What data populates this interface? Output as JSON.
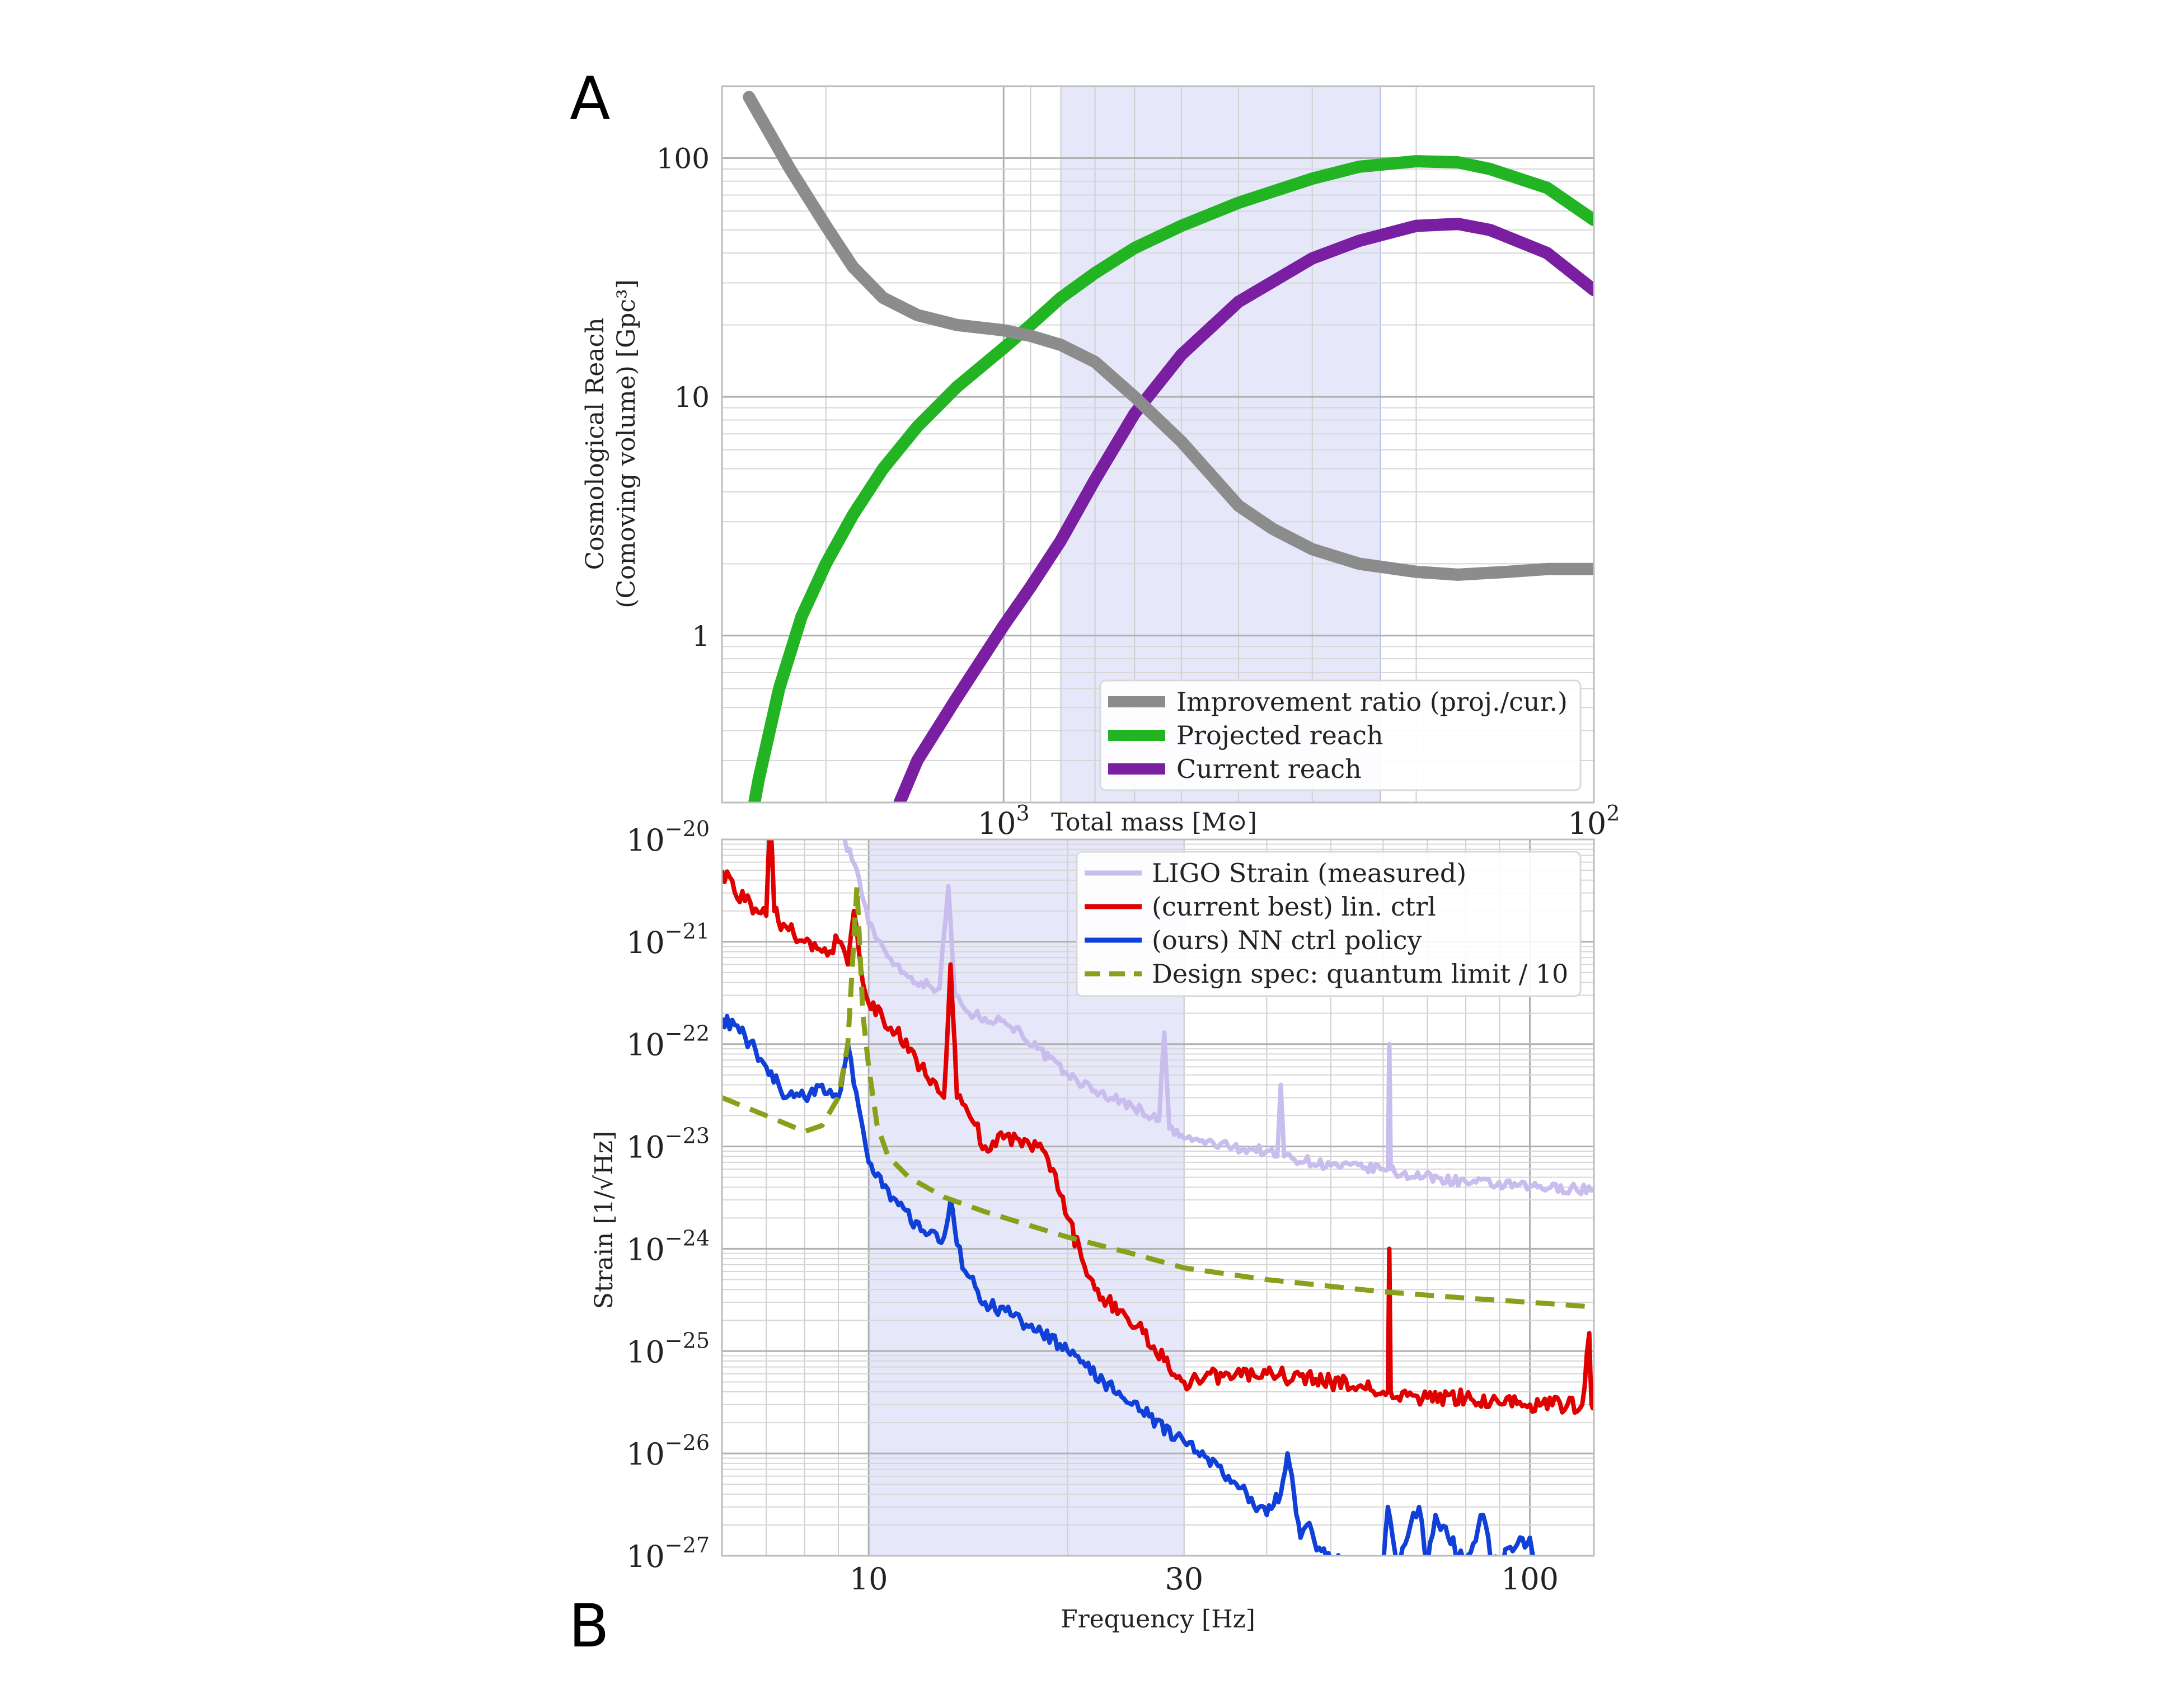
{
  "figure": {
    "panel_a_letter": "A",
    "panel_b_letter": "B"
  },
  "chart_data": [
    {
      "panel": "A",
      "type": "line",
      "ylabel_line1": "Cosmological Reach",
      "ylabel_line2": "(Comoving volume) [Gpc³]",
      "xlabel": "Total mass [M⊙]",
      "xscale": "log-reversed",
      "yscale": "log",
      "xlim": [
        3000,
        100
      ],
      "ylim": [
        0.2,
        200
      ],
      "x_ticks": [
        {
          "value": 1000,
          "base": "10",
          "exp": "3"
        },
        {
          "value": 100,
          "base": "10",
          "exp": "2"
        }
      ],
      "y_ticks": [
        {
          "value": 1,
          "label": "1"
        },
        {
          "value": 10,
          "label": "10"
        },
        {
          "value": 100,
          "label": "100"
        }
      ],
      "shaded_band": [
        800,
        230
      ],
      "grid": true,
      "legend_placement": "lower-right",
      "series": [
        {
          "name": "Improvement ratio (proj./cur.)",
          "color": "#8c8c8c",
          "x": [
            2700,
            2300,
            2000,
            1800,
            1600,
            1400,
            1200,
            1000,
            900,
            800,
            700,
            600,
            500,
            400,
            350,
            300,
            250,
            200,
            170,
            140,
            120,
            100
          ],
          "y": [
            180,
            90,
            52,
            35,
            26,
            22,
            20,
            19,
            18,
            16.5,
            14,
            10,
            6.5,
            3.5,
            2.8,
            2.3,
            2.0,
            1.85,
            1.8,
            1.85,
            1.9,
            1.9
          ]
        },
        {
          "name": "Projected reach",
          "color": "#22b422",
          "x": [
            2700,
            2600,
            2400,
            2200,
            2000,
            1800,
            1600,
            1400,
            1200,
            1000,
            900,
            800,
            700,
            600,
            500,
            400,
            300,
            250,
            200,
            170,
            150,
            120,
            100
          ],
          "y": [
            0.15,
            0.25,
            0.6,
            1.2,
            2.0,
            3.2,
            5.0,
            7.5,
            11,
            16,
            20,
            26,
            33,
            42,
            52,
            65,
            82,
            92,
            97,
            96,
            90,
            75,
            55
          ]
        },
        {
          "name": "Current reach",
          "color": "#7a1fa2",
          "x": [
            1500,
            1400,
            1200,
            1000,
            900,
            800,
            700,
            600,
            500,
            400,
            300,
            250,
            200,
            170,
            150,
            120,
            100
          ],
          "y": [
            0.2,
            0.3,
            0.55,
            1.1,
            1.6,
            2.5,
            4.5,
            8.5,
            15,
            25,
            38,
            45,
            52,
            53,
            50,
            40,
            28
          ]
        }
      ]
    },
    {
      "panel": "B",
      "type": "line",
      "ylabel": "Strain [1/√Hz]",
      "xlabel": "Frequency [Hz]",
      "xscale": "log",
      "yscale": "log",
      "xlim": [
        6,
        125
      ],
      "ylim": [
        1e-27,
        1e-20
      ],
      "x_ticks": [
        {
          "value": 10,
          "label": "10"
        },
        {
          "value": 30,
          "label": "30"
        },
        {
          "value": 100,
          "label": "100"
        }
      ],
      "y_ticks": [
        {
          "value": -20,
          "base": "10",
          "exp": "−20"
        },
        {
          "value": -21,
          "base": "10",
          "exp": "−21"
        },
        {
          "value": -22,
          "base": "10",
          "exp": "−22"
        },
        {
          "value": -23,
          "base": "10",
          "exp": "−23"
        },
        {
          "value": -24,
          "base": "10",
          "exp": "−24"
        },
        {
          "value": -25,
          "base": "10",
          "exp": "−25"
        },
        {
          "value": -26,
          "base": "10",
          "exp": "−26"
        },
        {
          "value": -27,
          "base": "10",
          "exp": "−27"
        }
      ],
      "shaded_band": [
        10,
        30
      ],
      "grid": true,
      "legend_placement": "upper-right",
      "series": [
        {
          "name": "LIGO Strain (measured)",
          "color": "#c9bdee",
          "style": "solid",
          "noise": 0.05,
          "x": [
            9.2,
            9.6,
            10,
            10.5,
            11,
            11.5,
            12,
            12.8,
            13.2,
            13.5,
            13.8,
            14.2,
            15,
            16,
            17,
            18,
            20,
            22,
            25,
            27.5,
            28,
            28.5,
            30,
            35,
            40,
            41.5,
            42,
            42.5,
            50,
            60,
            61,
            61.3,
            61.6,
            62.5,
            80,
            100,
            125
          ],
          "y": [
            1e-20,
            5e-21,
            1.5e-21,
            9e-22,
            6e-22,
            4.5e-22,
            4e-22,
            3.5e-22,
            3.5e-21,
            3e-22,
            2.5e-22,
            2e-22,
            1.8e-22,
            1.7e-22,
            1.3e-22,
            9e-23,
            5e-23,
            3.5e-23,
            2.5e-23,
            1.8e-23,
            1.3e-22,
            1.5e-23,
            1.2e-23,
            1e-23,
            9e-24,
            8e-24,
            4e-23,
            8e-24,
            6.5e-24,
            6e-24,
            6e-24,
            1e-22,
            6e-24,
            5.5e-24,
            4.5e-24,
            4e-24,
            3.8e-24
          ]
        },
        {
          "name": "(current best) lin. ctrl",
          "color": "#e00000",
          "style": "solid",
          "noise": 0.08,
          "x": [
            6,
            6.5,
            7,
            7.1,
            7.2,
            7.3,
            7.5,
            8,
            8.5,
            9,
            9.3,
            9.5,
            9.8,
            10,
            10.5,
            11,
            12,
            12.5,
            13,
            13.3,
            13.6,
            14,
            15,
            16,
            18,
            19,
            20,
            21,
            22,
            24,
            26,
            28,
            30,
            35,
            40,
            50,
            55,
            60,
            61,
            61.3,
            61.6,
            62.5,
            70,
            80,
            100,
            120,
            123,
            124,
            125
          ],
          "y": [
            5e-21,
            2.5e-21,
            1.8e-21,
            1.6e-20,
            2e-21,
            1.6e-21,
            1.4e-21,
            1e-21,
            8e-22,
            1e-21,
            6e-22,
            2e-21,
            4e-22,
            2.5e-22,
            1.8e-22,
            1.3e-22,
            6e-23,
            4.5e-23,
            3e-23,
            6e-22,
            3e-23,
            2.5e-23,
            1e-23,
            1.2e-23,
            1e-23,
            6e-24,
            2e-24,
            8e-25,
            4e-25,
            2.5e-25,
            1.5e-25,
            8e-26,
            5e-26,
            6e-26,
            6e-26,
            5e-26,
            4.5e-26,
            4e-26,
            4e-26,
            1e-24,
            4e-26,
            3.5e-26,
            3.5e-26,
            3.5e-26,
            3e-26,
            3e-26,
            1.5e-25,
            3e-26,
            2.8e-26
          ]
        },
        {
          "name": "(ours) NN ctrl policy",
          "color": "#1040d8",
          "style": "solid",
          "noise": 0.07,
          "x": [
            6,
            6.5,
            7,
            7.5,
            8,
            8.5,
            9,
            9.3,
            9.5,
            9.8,
            10,
            10.5,
            11,
            12,
            13,
            13.3,
            13.6,
            14,
            15,
            17,
            20,
            25,
            30,
            35,
            40,
            42,
            43,
            44,
            45,
            46,
            48,
            50,
            55,
            60,
            61,
            63,
            66,
            68,
            70,
            72,
            80,
            85,
            88,
            95,
            100,
            102
          ],
          "y": [
            1.8e-22,
            1.2e-22,
            6e-23,
            3e-23,
            3e-23,
            4e-23,
            3e-23,
            1e-22,
            4e-23,
            1.5e-23,
            7e-24,
            4e-24,
            3e-24,
            1.5e-24,
            1.3e-24,
            3e-24,
            1.1e-24,
            6e-25,
            3e-25,
            2e-25,
            1e-25,
            3e-26,
            1.3e-26,
            6e-27,
            2.5e-27,
            4e-27,
            1e-26,
            4e-27,
            1.5e-27,
            2e-27,
            1.2e-27,
            9e-28,
            8e-28,
            8e-28,
            3e-27,
            8e-28,
            2e-27,
            3e-27,
            8e-28,
            2.5e-27,
            8e-28,
            2.5e-27,
            8e-28,
            1.2e-27,
            1.5e-27,
            7e-28
          ]
        },
        {
          "name": "Design spec: quantum limit / 10",
          "color": "#8aa01a",
          "style": "dashed",
          "noise": 0,
          "x": [
            6,
            7,
            8,
            8.5,
            9,
            9.3,
            9.6,
            9.8,
            10,
            10.3,
            10.7,
            11.5,
            13,
            15,
            20,
            25,
            30,
            40,
            50,
            60,
            80,
            100,
            125
          ],
          "y": [
            3e-23,
            2e-23,
            1.4e-23,
            1.6e-23,
            3e-23,
            1e-22,
            3.5e-21,
            2e-22,
            6e-23,
            1.6e-23,
            8e-24,
            5e-24,
            3.2e-24,
            2.3e-24,
            1.3e-24,
            9e-25,
            6.5e-25,
            5e-25,
            4.3e-25,
            3.8e-25,
            3.3e-25,
            3e-25,
            2.7e-25
          ]
        }
      ]
    }
  ]
}
